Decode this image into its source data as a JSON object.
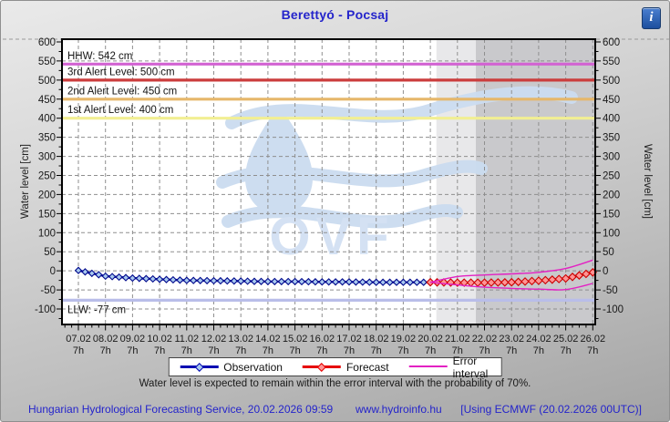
{
  "header": {
    "title": "Berettyó - Pocsaj",
    "info_icon_glyph": "i"
  },
  "chart_data": {
    "type": "line",
    "title": "Berettyó - Pocsaj",
    "ylabel_left": "Water level [cm]",
    "ylabel_right": "Water level [cm]",
    "ylim": [
      -140,
      607
    ],
    "ytick_min": -100,
    "ytick_max": 600,
    "ytick_step": 50,
    "grid": "dashed",
    "x_dates": [
      "07.02",
      "08.02",
      "09.02",
      "10.02",
      "11.02",
      "12.02",
      "13.02",
      "14.02",
      "15.02",
      "16.02",
      "17.02",
      "18.02",
      "19.02",
      "20.02",
      "21.02",
      "22.02",
      "23.02",
      "24.02",
      "25.02",
      "26.02"
    ],
    "x_sub": "7h",
    "points_per_day": 4,
    "shading": {
      "near_forecast_from_day": 13.23,
      "far_forecast_from_day": 14.68,
      "observed_color": "#ffffff",
      "near_color": "#e8e8ea",
      "far_color": "#c9c9cc"
    },
    "ref_lines": [
      {
        "label": "HHW: 542 cm",
        "value": 542,
        "color": "#d263d2",
        "label_pos": "above"
      },
      {
        "label": "3rd Alert Level: 500 cm",
        "value": 500,
        "color": "#cb3d3d",
        "label_pos": "above"
      },
      {
        "label": "2nd Alert Level: 450 cm",
        "value": 450,
        "color": "#e6b76a",
        "label_pos": "above"
      },
      {
        "label": "1st Alert Level: 400 cm",
        "value": 400,
        "color": "#f2ef92",
        "label_pos": "above"
      },
      {
        "label": "LLW: -77 cm",
        "value": -77,
        "color": "#b9bde9",
        "label_pos": "below"
      }
    ],
    "series": [
      {
        "name": "Observation",
        "kind": "observation",
        "color": "#0008b2",
        "marker_fill": "#a9c9ef",
        "marker_stroke": "#000a8c",
        "start_day": 0,
        "daily_values": [
          1,
          -14,
          -19,
          -22,
          -25,
          -26,
          -27,
          -28,
          -28,
          -29,
          -29,
          -30,
          -30,
          -30
        ]
      },
      {
        "name": "Forecast",
        "kind": "forecast",
        "color": "#e60000",
        "marker_fill": "#ff9494",
        "marker_stroke": "#cc0000",
        "start_day": 13,
        "daily_values": [
          -30,
          -31,
          -31,
          -30,
          -26,
          -20,
          -4
        ]
      },
      {
        "name": "Error interval upper",
        "kind": "error",
        "color": "#e321c3",
        "start_day": 13,
        "daily_values": [
          -30,
          -15,
          -11,
          -8,
          -4,
          6,
          28
        ]
      },
      {
        "name": "Error interval lower",
        "kind": "error",
        "color": "#e321c3",
        "start_day": 13,
        "daily_values": [
          -30,
          -37,
          -43,
          -46,
          -48,
          -49,
          -33
        ]
      }
    ],
    "watermark": "OVF",
    "watermark_color": "#cbdcf0"
  },
  "legend": {
    "items": [
      {
        "label": "Observation",
        "color": "#0008b2",
        "marker": true,
        "marker_fill": "#a9c9ef"
      },
      {
        "label": "Forecast",
        "color": "#e60000",
        "marker": true,
        "marker_fill": "#ff9494"
      },
      {
        "label": "Error interval",
        "color": "#e321c3",
        "marker": false
      }
    ]
  },
  "note": "Water level is expected to remain within the error interval with the probability of 70%.",
  "footer": {
    "left": "Hungarian Hydrological Forecasting Service, 20.02.2026 09:59",
    "center": "www.hydroinfo.hu",
    "right": "[Using ECMWF (20.02.2026  00UTC)]"
  }
}
